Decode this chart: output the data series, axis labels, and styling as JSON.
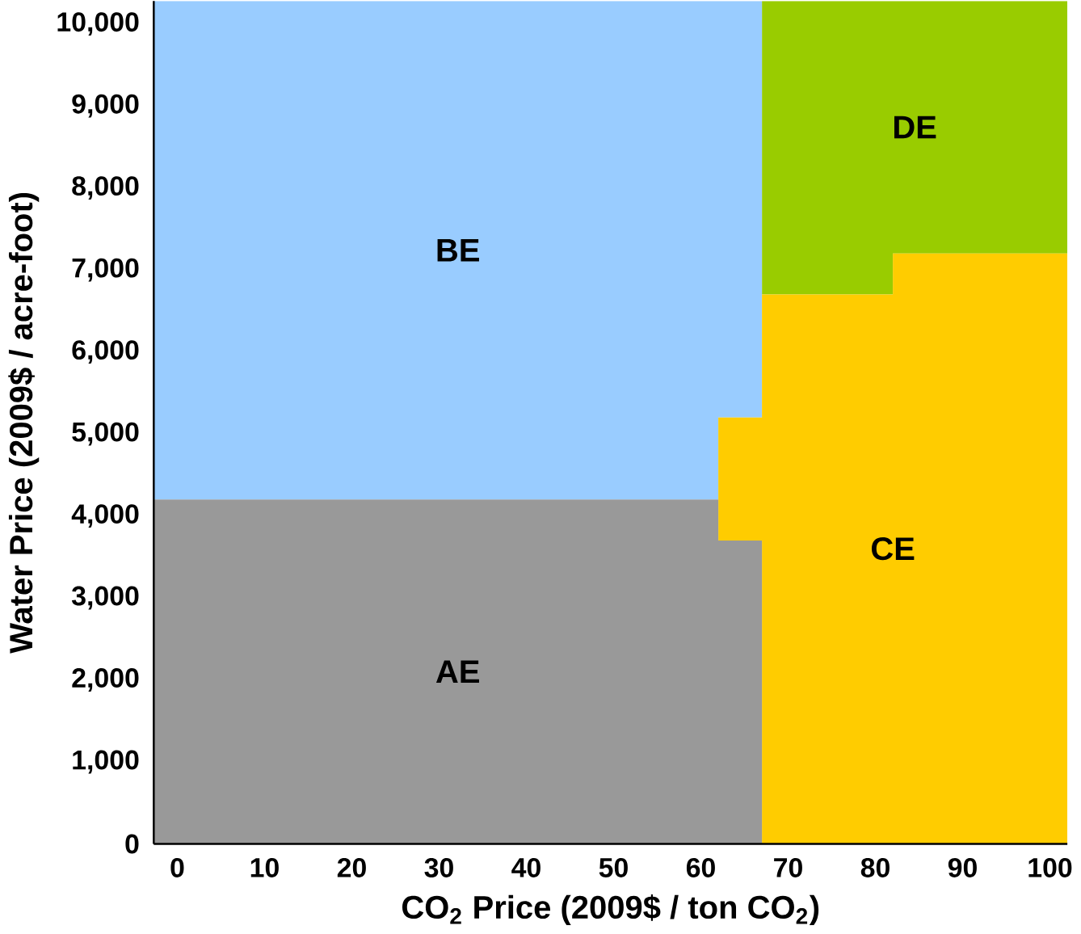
{
  "chart_data": {
    "type": "area",
    "stacked": true,
    "line_style": "step",
    "xlabel": "CO$_{2}$ Price (2009$ / ton CO$_{2}$)",
    "ylabel": "Water Price (2009$ / acre-foot)",
    "x": [
      -2.7,
      62,
      67,
      82,
      102
    ],
    "series": [
      {
        "name": "AE",
        "color": "#999999",
        "values": [
          4200,
          3700,
          0,
          0,
          0
        ]
      },
      {
        "name": "CE",
        "color": "#ffcc00",
        "values": [
          0,
          1500,
          6700,
          7200,
          7200
        ]
      },
      {
        "name": "BE",
        "color": "#99ccff",
        "values": [
          6080,
          5080,
          0,
          0,
          0
        ]
      },
      {
        "name": "DE",
        "color": "#99cc00",
        "values": [
          0,
          0,
          3580,
          3080,
          3080
        ]
      }
    ],
    "xlim": [
      -2.7,
      102
    ],
    "ylim": [
      0,
      10280
    ],
    "xticks": [
      0,
      10,
      20,
      30,
      40,
      50,
      60,
      70,
      80,
      90,
      100
    ],
    "yticks": [
      0,
      {
        "value": 1000,
        "label": "1,000"
      },
      {
        "value": 2000,
        "label": "2,000"
      },
      {
        "value": 3000,
        "label": "3,000"
      },
      {
        "value": 4000,
        "label": "4,000"
      },
      {
        "value": 5000,
        "label": "5,000"
      },
      {
        "value": 6000,
        "label": "6,000"
      },
      {
        "value": 7000,
        "label": "7,000"
      },
      {
        "value": 8000,
        "label": "8,000"
      },
      {
        "value": 9000,
        "label": "9,000"
      },
      {
        "value": 10000,
        "label": "10,000"
      }
    ],
    "grid": false
  }
}
